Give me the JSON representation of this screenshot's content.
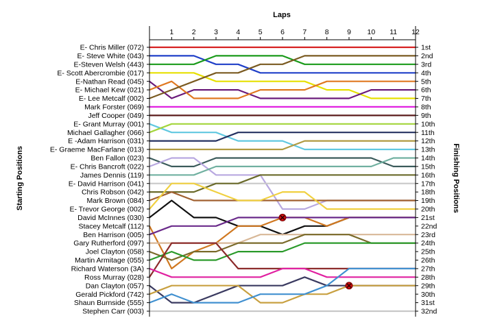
{
  "chart_data": {
    "type": "line",
    "title": "",
    "xlabel": "Laps",
    "ylabel_left": "Starting Positions",
    "ylabel_right": "Finishing Positions",
    "x": [
      0,
      1,
      2,
      3,
      4,
      5,
      6,
      7,
      8,
      9,
      10,
      11,
      12
    ],
    "xlim": [
      0,
      12
    ],
    "x_tick_labels": [
      "1",
      "2",
      "3",
      "4",
      "5",
      "6",
      "7",
      "8",
      "9",
      "10",
      "11",
      "12"
    ],
    "ylim": [
      1,
      32
    ],
    "y_inverted": true,
    "grid": false,
    "legend": "none",
    "starting_labels": [
      "E- Chris Miller (072)",
      "E- Steve White (043)",
      "E-Steven Welsh (443)",
      "E- Scott Abercrombie (017)",
      "E-Nathan Read (045)",
      "E- Michael Kew (021)",
      "E- Lee Metcalf (002)",
      "Mark Forster (069)",
      "Jeff Cooper (049)",
      "E- Grant Murray (001)",
      "Michael Gallagher (066)",
      "E -Adam Harrison (031)",
      "E- Graeme MacFarlane (013)",
      "Ben Fallon (023)",
      "E- Chris Bancroft (022)",
      "James Dennis (119)",
      "E- David Harrison (041)",
      "Chris Robson (042)",
      "Mark Brown (084)",
      "E- Trevor George (002)",
      "David McInnes (030)",
      "Stacey Metcalf (112)",
      "Ben Harrison (005)",
      "Gary Rutherford (097)",
      "Joel Clayton (058)",
      "Martin Armitage (055)",
      "Richard Waterson (3A)",
      "Ross Murray (028)",
      "Dan Clayton (057)",
      "Gerald Pickford (742)",
      "Shaun Burnside (555)",
      "Stephen Carr (003)"
    ],
    "finishing_labels": [
      "1st",
      "2nd",
      "3rd",
      "4th",
      "5th",
      "6th",
      "7th",
      "8th",
      "9th",
      "10th",
      "11th",
      "12th",
      "13th",
      "14th",
      "15th",
      "16th",
      "17th",
      "18th",
      "19th",
      "20th",
      "21st",
      "22nd",
      "23rd",
      "24th",
      "25th",
      "26th",
      "27th",
      "28th",
      "29th",
      "30th",
      "31st",
      "32nd"
    ],
    "series": [
      {
        "color": "#d62020",
        "values": [
          1,
          1,
          1,
          1,
          1,
          1,
          1,
          1,
          1,
          1,
          1,
          1,
          1
        ]
      },
      {
        "color": "#1f3fc8",
        "values": [
          2,
          2,
          2,
          3,
          3,
          4,
          4,
          4,
          4,
          4,
          4,
          4,
          4
        ]
      },
      {
        "color": "#1a9a1a",
        "values": [
          3,
          3,
          3,
          2,
          2,
          2,
          2,
          3,
          3,
          3,
          3,
          3,
          3
        ]
      },
      {
        "color": "#e6e000",
        "values": [
          4,
          4,
          4,
          5,
          5,
          5,
          5,
          5,
          6,
          6,
          7,
          7,
          7
        ]
      },
      {
        "color": "#6a1a7a",
        "values": [
          5,
          7,
          6,
          6,
          6,
          7,
          7,
          7,
          7,
          7,
          6,
          6,
          6
        ]
      },
      {
        "color": "#e07820",
        "values": [
          6,
          5,
          7,
          7,
          7,
          6,
          6,
          6,
          5,
          5,
          5,
          5,
          5
        ]
      },
      {
        "color": "#7a5a20",
        "values": [
          7,
          6,
          5,
          4,
          4,
          3,
          3,
          2,
          2,
          2,
          2,
          2,
          2
        ]
      },
      {
        "color": "#e020e0",
        "values": [
          8,
          8,
          8,
          8,
          8,
          8,
          8,
          8,
          8,
          8,
          8,
          8,
          8
        ]
      },
      {
        "color": "#5a1a1a",
        "values": [
          9,
          9,
          9,
          9,
          9,
          9,
          9,
          9,
          9,
          9,
          9,
          9,
          9
        ]
      },
      {
        "color": "#60c8e0",
        "values": [
          10,
          11,
          11,
          11,
          12,
          12,
          12,
          13,
          13,
          13,
          13,
          13,
          13
        ]
      },
      {
        "color": "#a3d53b",
        "values": [
          11,
          10,
          10,
          10,
          10,
          10,
          10,
          10,
          10,
          10,
          10,
          10,
          10
        ]
      },
      {
        "color": "#243060",
        "values": [
          12,
          12,
          12,
          12,
          11,
          11,
          11,
          11,
          11,
          11,
          11,
          11,
          11
        ]
      },
      {
        "color": "#b09a40",
        "values": [
          13,
          13,
          13,
          13,
          13,
          13,
          13,
          12,
          12,
          12,
          12,
          12,
          12
        ]
      },
      {
        "color": "#3a5a5a",
        "values": [
          14,
          15,
          15,
          14,
          14,
          14,
          14,
          14,
          14,
          14,
          14,
          15,
          15
        ]
      },
      {
        "color": "#b8a8e0",
        "values": [
          15,
          14,
          14,
          16,
          16,
          16,
          20,
          20,
          19,
          19,
          19,
          19,
          19
        ]
      },
      {
        "color": "#70b0a0",
        "values": [
          16,
          16,
          16,
          15,
          15,
          15,
          15,
          15,
          15,
          15,
          15,
          14,
          14
        ]
      },
      {
        "color": "#c8c8c8",
        "values": [
          17,
          17,
          17,
          17,
          17,
          17,
          17,
          17,
          17,
          17,
          17,
          17,
          17
        ]
      },
      {
        "color": "#6a6a2a",
        "values": [
          18,
          18,
          18,
          17,
          17,
          16,
          16,
          16,
          16,
          16,
          16,
          16,
          16
        ]
      },
      {
        "color": "#a06030",
        "values": [
          19,
          18,
          19,
          19,
          19,
          19,
          19,
          19,
          19,
          19,
          19,
          19,
          19
        ]
      },
      {
        "color": "#f0d040",
        "values": [
          20,
          17,
          17,
          18,
          19,
          19,
          18,
          18,
          20,
          20,
          20,
          20,
          20
        ]
      },
      {
        "color": "#101010",
        "values": [
          21,
          19,
          21,
          21,
          22,
          22,
          23,
          22,
          22,
          21,
          21,
          21,
          21
        ]
      },
      {
        "color": "#d07820",
        "values": [
          22,
          27,
          25,
          24,
          22,
          22,
          21,
          21,
          22,
          21,
          21,
          21,
          21
        ]
      },
      {
        "color": "#6a2a8a",
        "values": [
          23,
          22,
          22,
          22,
          21,
          21,
          21,
          21,
          21,
          21,
          21,
          21,
          21
        ]
      },
      {
        "color": "#d8b898",
        "values": [
          24,
          24,
          24,
          24,
          24,
          23,
          23,
          23,
          23,
          23,
          23,
          23,
          23
        ]
      },
      {
        "color": "#7a6a2a",
        "values": [
          25,
          26,
          25,
          25,
          24,
          24,
          24,
          23,
          23,
          23,
          24,
          24,
          24
        ]
      },
      {
        "color": "#2a9a2a",
        "values": [
          26,
          25,
          26,
          26,
          25,
          25,
          25,
          24,
          24,
          24,
          24,
          24,
          24
        ]
      },
      {
        "color": "#8b2a2a",
        "values": [
          28,
          24,
          24,
          24,
          27,
          27,
          27,
          27,
          27,
          27,
          27,
          27,
          27
        ]
      },
      {
        "color": "#e020a0",
        "values": [
          27,
          28,
          28,
          28,
          28,
          28,
          27,
          27,
          28,
          28,
          28,
          28,
          28
        ]
      },
      {
        "color": "#3a3a60",
        "values": [
          29,
          31,
          31,
          30,
          29,
          29,
          29,
          28,
          29,
          29,
          29,
          29,
          29
        ]
      },
      {
        "color": "#c8a040",
        "values": [
          30,
          29,
          29,
          29,
          29,
          31,
          31,
          30,
          30,
          29,
          29,
          29,
          29
        ]
      },
      {
        "color": "#4090d0",
        "values": [
          31,
          30,
          31,
          31,
          31,
          30,
          30,
          30,
          29,
          27,
          27,
          27,
          27
        ]
      },
      {
        "color": "#c8c8c8",
        "values": [
          32,
          32,
          32,
          32,
          32,
          32,
          32,
          32,
          32,
          32,
          32,
          32,
          32
        ]
      }
    ],
    "retirements": [
      {
        "lap": 6,
        "position": 21
      },
      {
        "lap": 9,
        "position": 29
      }
    ]
  }
}
